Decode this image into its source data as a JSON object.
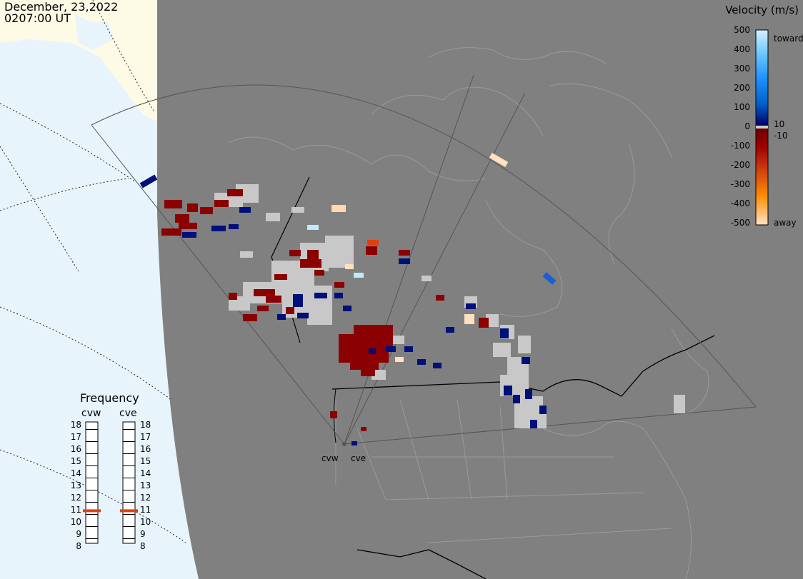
{
  "header": {
    "date": "December, 23,2022",
    "time": "0207:00 UT"
  },
  "velocity_scale": {
    "title": "Velocity (m/s)",
    "ticks": [
      "500",
      "400",
      "300",
      "200",
      "100",
      "0",
      "-100",
      "-200",
      "-300",
      "-400",
      "-500"
    ],
    "extra_ticks": [
      "10",
      "-10"
    ],
    "toward_label": "toward",
    "away_label": "away"
  },
  "frequency": {
    "title": "Frequency",
    "radars": [
      "cvw",
      "cve"
    ],
    "ticks": [
      "18",
      "17",
      "16",
      "15",
      "14",
      "13",
      "12",
      "11",
      "10",
      "9",
      "8"
    ],
    "selected": [
      {
        "radar": "cvw",
        "mhz": 10.8
      },
      {
        "radar": "cve",
        "mhz": 10.8
      }
    ],
    "marker_color": "#e04010"
  },
  "radars": [
    {
      "name": "cvw"
    },
    {
      "name": "cve"
    }
  ],
  "colors": {
    "ocean": "#e8f4fc",
    "land_outside": "#fdfbe6",
    "nightside": "#808080",
    "ground_scatter": "#c8c8c8",
    "toward_dark": "#00107a",
    "away_dark": "#8b0000"
  }
}
